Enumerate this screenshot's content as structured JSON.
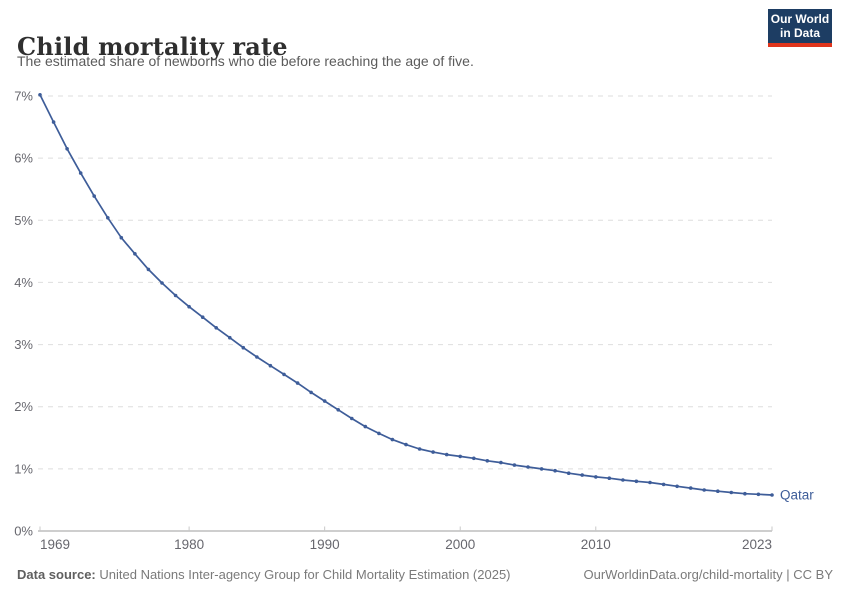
{
  "header": {
    "title": "Child mortality rate",
    "subtitle": "The estimated share of newborns who die before reaching the age of five.",
    "logo": {
      "line1": "Our World",
      "line2": "in Data"
    }
  },
  "footer": {
    "source_label": "Data source:",
    "source_text": "United Nations Inter-agency Group for Child Mortality Estimation (2025)",
    "link_text": "OurWorldinData.org/child-mortality | CC BY"
  },
  "colors": {
    "line": "#3e5d99",
    "grid": "#dedede",
    "axis": "#9e9e9e",
    "tick_mark": "#c8c8c8",
    "tick_label": "#67676e",
    "logo_bg": "#1d3d63",
    "logo_red": "#e0351c"
  },
  "chart_data": {
    "type": "line",
    "title": "Child mortality rate",
    "subtitle": "The estimated share of newborns who die before reaching the age of five.",
    "xlabel": "",
    "ylabel": "",
    "xlim": [
      1969,
      2023
    ],
    "ylim": [
      0,
      7
    ],
    "grid": "horizontal-dashed",
    "legend_position": "end-of-line-label",
    "x_ticks": [
      1969,
      1980,
      1990,
      2000,
      2010,
      2023
    ],
    "x_tick_labels": [
      "1969",
      "1980",
      "1990",
      "2000",
      "2010",
      "2023"
    ],
    "y_ticks": [
      0,
      1,
      2,
      3,
      4,
      5,
      6,
      7
    ],
    "y_tick_labels": [
      "0%",
      "1%",
      "2%",
      "3%",
      "4%",
      "5%",
      "6%",
      "7%"
    ],
    "x": [
      1969,
      1970,
      1971,
      1972,
      1973,
      1974,
      1975,
      1976,
      1977,
      1978,
      1979,
      1980,
      1981,
      1982,
      1983,
      1984,
      1985,
      1986,
      1987,
      1988,
      1989,
      1990,
      1991,
      1992,
      1993,
      1994,
      1995,
      1996,
      1997,
      1998,
      1999,
      2000,
      2001,
      2002,
      2003,
      2004,
      2005,
      2006,
      2007,
      2008,
      2009,
      2010,
      2011,
      2012,
      2013,
      2014,
      2015,
      2016,
      2017,
      2018,
      2019,
      2020,
      2021,
      2022,
      2023
    ],
    "series": [
      {
        "name": "Qatar",
        "end_label": "Qatar",
        "values": [
          7.02,
          6.58,
          6.15,
          5.76,
          5.39,
          5.04,
          4.72,
          4.46,
          4.21,
          3.99,
          3.79,
          3.61,
          3.44,
          3.27,
          3.11,
          2.95,
          2.8,
          2.66,
          2.52,
          2.38,
          2.23,
          2.09,
          1.95,
          1.81,
          1.68,
          1.57,
          1.47,
          1.39,
          1.32,
          1.27,
          1.23,
          1.2,
          1.17,
          1.13,
          1.1,
          1.06,
          1.03,
          1.0,
          0.97,
          0.93,
          0.9,
          0.87,
          0.85,
          0.82,
          0.8,
          0.78,
          0.75,
          0.72,
          0.69,
          0.66,
          0.64,
          0.62,
          0.6,
          0.59,
          0.58
        ]
      }
    ]
  }
}
